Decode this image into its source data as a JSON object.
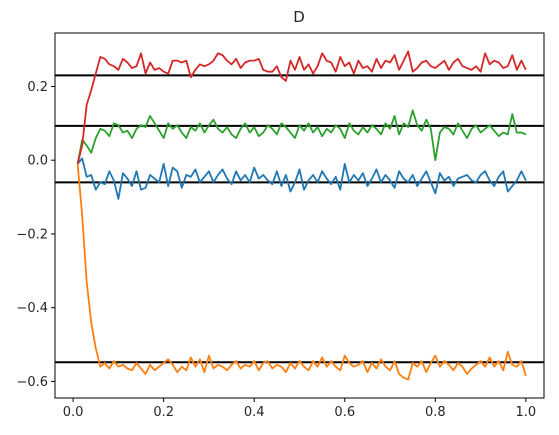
{
  "chart_data": {
    "type": "line",
    "title": "D",
    "xlabel": "",
    "ylabel": "",
    "xlim": [
      -0.04,
      1.04
    ],
    "ylim": [
      -0.645,
      0.345
    ],
    "xticks": [
      0.0,
      0.2,
      0.4,
      0.6,
      0.8,
      1.0
    ],
    "xtick_labels": [
      "0.0",
      "0.2",
      "0.4",
      "0.6",
      "0.8",
      "1.0"
    ],
    "yticks": [
      -0.6,
      -0.4,
      -0.2,
      0.0,
      0.2
    ],
    "ytick_labels": [
      "−0.6",
      "−0.4",
      "−0.2",
      "0.0",
      "0.2"
    ],
    "grid": false,
    "x": [
      0.01,
      0.02,
      0.03,
      0.04,
      0.05,
      0.06,
      0.07,
      0.08,
      0.09,
      0.1,
      0.11,
      0.12,
      0.13,
      0.14,
      0.15,
      0.16,
      0.17,
      0.18,
      0.19,
      0.2,
      0.21,
      0.22,
      0.23,
      0.24,
      0.25,
      0.26,
      0.27,
      0.28,
      0.29,
      0.3,
      0.31,
      0.32,
      0.33,
      0.34,
      0.35,
      0.36,
      0.37,
      0.38,
      0.39,
      0.4,
      0.41,
      0.42,
      0.43,
      0.44,
      0.45,
      0.46,
      0.47,
      0.48,
      0.49,
      0.5,
      0.51,
      0.52,
      0.53,
      0.54,
      0.55,
      0.56,
      0.57,
      0.58,
      0.59,
      0.6,
      0.61,
      0.62,
      0.63,
      0.64,
      0.65,
      0.66,
      0.67,
      0.68,
      0.69,
      0.7,
      0.71,
      0.72,
      0.73,
      0.74,
      0.75,
      0.76,
      0.77,
      0.78,
      0.79,
      0.8,
      0.81,
      0.82,
      0.83,
      0.84,
      0.85,
      0.86,
      0.87,
      0.88,
      0.89,
      0.9,
      0.91,
      0.92,
      0.93,
      0.94,
      0.95,
      0.96,
      0.97,
      0.98,
      0.99,
      1.0
    ],
    "series": [
      {
        "color": "#1f77b4",
        "values": [
          -0.01,
          0.005,
          -0.045,
          -0.04,
          -0.08,
          -0.06,
          -0.065,
          -0.03,
          -0.055,
          -0.105,
          -0.035,
          -0.05,
          -0.07,
          -0.03,
          -0.08,
          -0.075,
          -0.04,
          -0.05,
          -0.06,
          -0.01,
          -0.07,
          -0.02,
          -0.03,
          -0.075,
          -0.04,
          -0.045,
          -0.025,
          -0.06,
          -0.045,
          -0.03,
          -0.06,
          -0.04,
          -0.025,
          -0.05,
          -0.065,
          -0.03,
          -0.055,
          -0.04,
          -0.06,
          -0.02,
          -0.05,
          -0.04,
          -0.055,
          -0.065,
          -0.03,
          -0.07,
          -0.04,
          -0.085,
          -0.06,
          -0.025,
          -0.08,
          -0.055,
          -0.04,
          -0.06,
          -0.03,
          -0.05,
          -0.065,
          -0.045,
          -0.08,
          -0.01,
          -0.06,
          -0.04,
          -0.055,
          -0.035,
          -0.07,
          -0.05,
          -0.025,
          -0.06,
          -0.04,
          -0.055,
          -0.075,
          -0.03,
          -0.05,
          -0.06,
          -0.04,
          -0.07,
          -0.05,
          -0.03,
          -0.06,
          -0.09,
          -0.035,
          -0.055,
          -0.045,
          -0.07,
          -0.05,
          -0.045,
          -0.04,
          -0.055,
          -0.06,
          -0.04,
          -0.03,
          -0.055,
          -0.07,
          -0.045,
          -0.03,
          -0.085,
          -0.07,
          -0.055,
          -0.03,
          -0.055
        ]
      },
      {
        "color": "#ff7f0e",
        "values": [
          -0.01,
          -0.15,
          -0.33,
          -0.44,
          -0.51,
          -0.56,
          -0.55,
          -0.565,
          -0.545,
          -0.56,
          -0.555,
          -0.565,
          -0.57,
          -0.55,
          -0.565,
          -0.58,
          -0.555,
          -0.57,
          -0.56,
          -0.55,
          -0.54,
          -0.555,
          -0.575,
          -0.56,
          -0.57,
          -0.535,
          -0.56,
          -0.54,
          -0.575,
          -0.53,
          -0.565,
          -0.555,
          -0.56,
          -0.57,
          -0.555,
          -0.545,
          -0.565,
          -0.555,
          -0.56,
          -0.545,
          -0.57,
          -0.55,
          -0.545,
          -0.565,
          -0.555,
          -0.56,
          -0.575,
          -0.55,
          -0.565,
          -0.545,
          -0.56,
          -0.57,
          -0.545,
          -0.56,
          -0.535,
          -0.56,
          -0.545,
          -0.56,
          -0.57,
          -0.53,
          -0.55,
          -0.56,
          -0.555,
          -0.545,
          -0.575,
          -0.55,
          -0.565,
          -0.54,
          -0.56,
          -0.57,
          -0.545,
          -0.58,
          -0.59,
          -0.595,
          -0.55,
          -0.56,
          -0.545,
          -0.575,
          -0.55,
          -0.53,
          -0.56,
          -0.545,
          -0.555,
          -0.57,
          -0.55,
          -0.56,
          -0.58,
          -0.565,
          -0.555,
          -0.545,
          -0.56,
          -0.535,
          -0.56,
          -0.545,
          -0.57,
          -0.52,
          -0.555,
          -0.56,
          -0.545,
          -0.585
        ]
      },
      {
        "color": "#2ca02c",
        "values": [
          -0.01,
          0.055,
          0.04,
          0.02,
          0.06,
          0.085,
          0.08,
          0.065,
          0.1,
          0.095,
          0.075,
          0.08,
          0.06,
          0.085,
          0.095,
          0.09,
          0.12,
          0.1,
          0.08,
          0.06,
          0.1,
          0.085,
          0.095,
          0.075,
          0.06,
          0.09,
          0.08,
          0.1,
          0.075,
          0.095,
          0.11,
          0.085,
          0.075,
          0.09,
          0.07,
          0.06,
          0.085,
          0.1,
          0.075,
          0.09,
          0.065,
          0.075,
          0.095,
          0.085,
          0.07,
          0.1,
          0.09,
          0.075,
          0.06,
          0.095,
          0.08,
          0.1,
          0.075,
          0.09,
          0.065,
          0.085,
          0.075,
          0.095,
          0.085,
          0.06,
          0.1,
          0.08,
          0.07,
          0.09,
          0.075,
          0.095,
          0.085,
          0.07,
          0.1,
          0.085,
          0.12,
          0.07,
          0.1,
          0.09,
          0.135,
          0.095,
          0.08,
          0.11,
          0.085,
          0.0,
          0.075,
          0.09,
          0.085,
          0.07,
          0.1,
          0.08,
          0.06,
          0.085,
          0.095,
          0.075,
          0.085,
          0.095,
          0.08,
          0.065,
          0.075,
          0.07,
          0.125,
          0.075,
          0.075,
          0.07
        ]
      },
      {
        "color": "#d62728",
        "values": [
          -0.01,
          0.04,
          0.15,
          0.19,
          0.235,
          0.28,
          0.275,
          0.26,
          0.255,
          0.245,
          0.275,
          0.265,
          0.25,
          0.255,
          0.29,
          0.235,
          0.265,
          0.245,
          0.25,
          0.24,
          0.235,
          0.27,
          0.27,
          0.265,
          0.27,
          0.225,
          0.245,
          0.26,
          0.255,
          0.26,
          0.27,
          0.29,
          0.285,
          0.27,
          0.26,
          0.275,
          0.25,
          0.265,
          0.27,
          0.27,
          0.275,
          0.245,
          0.24,
          0.24,
          0.255,
          0.225,
          0.215,
          0.27,
          0.245,
          0.28,
          0.245,
          0.26,
          0.235,
          0.255,
          0.29,
          0.27,
          0.265,
          0.24,
          0.28,
          0.255,
          0.265,
          0.235,
          0.27,
          0.25,
          0.255,
          0.24,
          0.275,
          0.25,
          0.27,
          0.265,
          0.285,
          0.245,
          0.27,
          0.295,
          0.24,
          0.25,
          0.265,
          0.27,
          0.255,
          0.25,
          0.26,
          0.27,
          0.245,
          0.265,
          0.275,
          0.255,
          0.25,
          0.245,
          0.255,
          0.24,
          0.29,
          0.26,
          0.27,
          0.265,
          0.25,
          0.255,
          0.285,
          0.245,
          0.27,
          0.245
        ]
      }
    ],
    "hlines": [
      {
        "y": 0.23,
        "color": "#000000"
      },
      {
        "y": 0.093,
        "color": "#000000"
      },
      {
        "y": -0.06,
        "color": "#000000"
      },
      {
        "y": -0.548,
        "color": "#000000"
      }
    ]
  }
}
